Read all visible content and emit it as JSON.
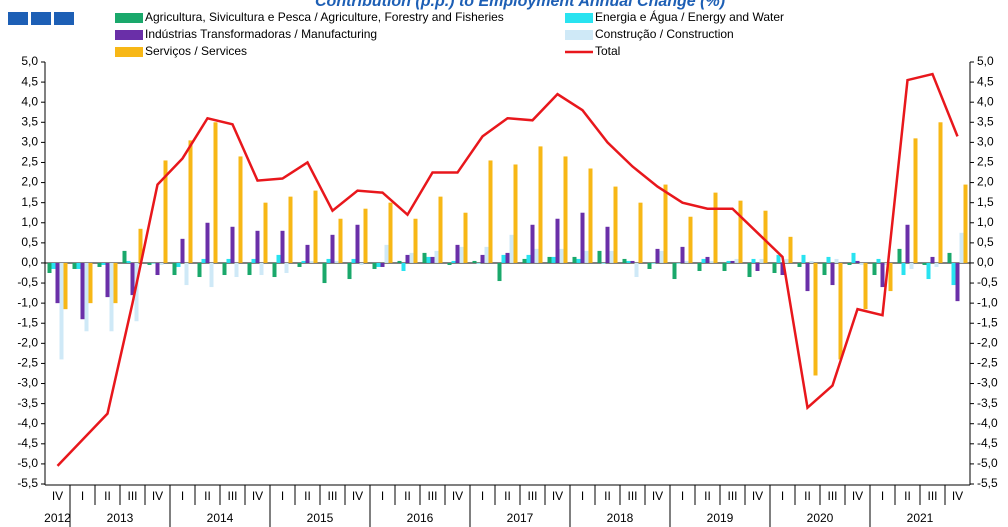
{
  "chart_data": {
    "type": "bar",
    "title": "Contribution (p.p.) to Employment Annual Change (%)",
    "categories": [
      "IV",
      "I",
      "II",
      "III",
      "IV",
      "I",
      "II",
      "III",
      "IV",
      "I",
      "II",
      "III",
      "IV",
      "I",
      "II",
      "III",
      "IV",
      "I",
      "II",
      "III",
      "IV",
      "I",
      "II",
      "III",
      "IV",
      "I",
      "II",
      "III",
      "IV",
      "I",
      "II",
      "III",
      "IV",
      "I",
      "II",
      "III",
      "IV"
    ],
    "years": [
      "2012",
      "2013",
      "2014",
      "2015",
      "2016",
      "2017",
      "2018",
      "2019",
      "2020",
      "2021"
    ],
    "series": [
      {
        "name": "Agricultura, Sivicultura e Pesca / Agriculture, Forestry and Fisheries",
        "color": "#1aa86b",
        "values": [
          -0.25,
          -0.15,
          -0.1,
          0.3,
          -0.05,
          -0.3,
          -0.35,
          -0.3,
          -0.3,
          -0.35,
          -0.1,
          -0.5,
          -0.4,
          -0.15,
          0.05,
          0.25,
          -0.05,
          0.05,
          -0.45,
          0.1,
          0.15,
          0.15,
          0.3,
          0.1,
          -0.15,
          -0.4,
          -0.2,
          -0.2,
          -0.35,
          -0.25,
          -0.1,
          -0.3,
          -0.05,
          -0.3,
          0.35,
          -0.05,
          0.25
        ]
      },
      {
        "name": "Energia e Água / Energy and Water",
        "color": "#29e3f0",
        "values": [
          -0.15,
          -0.15,
          -0.05,
          0.05,
          0.0,
          -0.1,
          0.1,
          0.1,
          0.1,
          0.2,
          0.05,
          0.1,
          0.1,
          -0.1,
          -0.2,
          0.15,
          0.05,
          0.0,
          0.2,
          0.2,
          0.15,
          0.1,
          0.0,
          0.05,
          0.0,
          0.0,
          0.1,
          0.05,
          0.1,
          0.2,
          0.2,
          0.15,
          0.25,
          0.1,
          -0.3,
          -0.4,
          -0.55
        ]
      },
      {
        "name": "Indústrias Transformadoras / Manufacturing",
        "color": "#6a2fa8",
        "values": [
          -1.0,
          -1.4,
          -0.85,
          -0.8,
          -0.3,
          0.6,
          1.0,
          0.9,
          0.8,
          0.8,
          0.45,
          0.7,
          0.95,
          -0.1,
          0.2,
          0.15,
          0.45,
          0.2,
          0.25,
          0.95,
          1.1,
          1.25,
          0.9,
          0.05,
          0.35,
          0.4,
          0.15,
          0.05,
          -0.2,
          -0.3,
          -0.7,
          -0.55,
          0.05,
          -0.6,
          0.95,
          0.15,
          -0.95
        ]
      },
      {
        "name": "Construção / Construction",
        "color": "#cfe9f7",
        "values": [
          -2.4,
          -1.7,
          -1.7,
          -1.45,
          -0.05,
          -0.55,
          -0.6,
          -0.35,
          -0.3,
          -0.25,
          0.05,
          0.05,
          -0.05,
          0.45,
          0.25,
          0.3,
          0.4,
          0.4,
          0.7,
          0.35,
          0.35,
          0.3,
          0.3,
          -0.35,
          0.3,
          0.05,
          0.05,
          0.1,
          0.1,
          0.1,
          0.05,
          0.1,
          -0.05,
          -0.05,
          -0.15,
          -0.1,
          0.75
        ]
      },
      {
        "name": "Serviços / Services",
        "color": "#f7b716",
        "values": [
          -1.15,
          -1.0,
          -1.0,
          0.85,
          2.55,
          3.05,
          3.5,
          2.65,
          1.5,
          1.65,
          1.8,
          1.1,
          1.35,
          1.5,
          1.1,
          1.65,
          1.25,
          2.55,
          2.45,
          2.9,
          2.65,
          2.35,
          1.9,
          1.5,
          1.95,
          1.15,
          1.75,
          1.55,
          1.3,
          0.65,
          -2.8,
          -2.4,
          -1.15,
          -0.7,
          3.1,
          3.5,
          1.95
        ]
      }
    ],
    "line": {
      "name": "Total",
      "color": "#e8171c",
      "values": [
        -5.05,
        -4.4,
        -3.75,
        -1.0,
        1.95,
        2.6,
        3.6,
        3.45,
        2.05,
        2.1,
        2.5,
        1.3,
        1.8,
        1.75,
        1.2,
        2.25,
        2.25,
        3.15,
        3.6,
        3.55,
        4.2,
        3.8,
        3.0,
        2.4,
        1.9,
        1.5,
        1.35,
        1.35,
        0.75,
        0.15,
        -3.6,
        -3.05,
        -1.15,
        -1.3,
        4.55,
        4.7,
        3.15
      ]
    },
    "ylim": [
      -5.5,
      5.0
    ],
    "yticks": [
      {
        "value": -5.5,
        "label": "-5,5"
      },
      {
        "value": -5.0,
        "label": "-5,0"
      },
      {
        "value": -4.5,
        "label": "-4,5"
      },
      {
        "value": -4.0,
        "label": "-4,0"
      },
      {
        "value": -3.5,
        "label": "-3,5"
      },
      {
        "value": -3.0,
        "label": "-3,0"
      },
      {
        "value": -2.5,
        "label": "-2,5"
      },
      {
        "value": -2.0,
        "label": "-2,0"
      },
      {
        "value": -1.5,
        "label": "-1,5"
      },
      {
        "value": -1.0,
        "label": "-1,0"
      },
      {
        "value": -0.5,
        "label": "-0,5"
      },
      {
        "value": 0.0,
        "label": "0,0"
      },
      {
        "value": 0.5,
        "label": "0,5"
      },
      {
        "value": 1.0,
        "label": "1,0"
      },
      {
        "value": 1.5,
        "label": "1,5"
      },
      {
        "value": 2.0,
        "label": "2,0"
      },
      {
        "value": 2.5,
        "label": "2,5"
      },
      {
        "value": 3.0,
        "label": "3,0"
      },
      {
        "value": 3.5,
        "label": "3,5"
      },
      {
        "value": 4.0,
        "label": "4,0"
      },
      {
        "value": 4.5,
        "label": "4,5"
      },
      {
        "value": 5.0,
        "label": "5,0"
      }
    ]
  }
}
